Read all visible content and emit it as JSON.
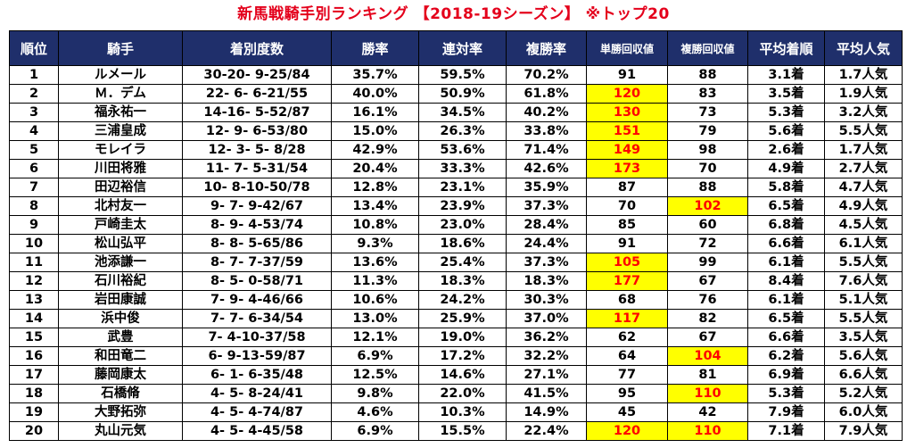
{
  "title": "新馬戦騎手別ランキング 【2018-19シーズン】 ※トップ20",
  "headers": [
    "順位",
    "騎手",
    "着別度数",
    "勝率",
    "連対率",
    "複勝率",
    "単勝回収値",
    "複勝回収値",
    "平均着順",
    "平均人気"
  ],
  "highlight": {
    "background": "#ffff00",
    "text": "#ff0000"
  },
  "header_color": "#1f2f6b",
  "rows": [
    {
      "rank": "1",
      "jockey": "ルメール",
      "record": "30-20- 9-25/84",
      "win": "35.7%",
      "quinella": "59.5%",
      "show": "70.2%",
      "win_return": "91",
      "show_return": "88",
      "avg_finish": "3.1着",
      "avg_pop": "1.7人気",
      "hl_win": false,
      "hl_show": false
    },
    {
      "rank": "2",
      "jockey": "Ｍ．デム",
      "record": "22- 6- 6-21/55",
      "win": "40.0%",
      "quinella": "50.9%",
      "show": "61.8%",
      "win_return": "120",
      "show_return": "83",
      "avg_finish": "3.5着",
      "avg_pop": "1.9人気",
      "hl_win": true,
      "hl_show": false
    },
    {
      "rank": "3",
      "jockey": "福永祐一",
      "record": "14-16- 5-52/87",
      "win": "16.1%",
      "quinella": "34.5%",
      "show": "40.2%",
      "win_return": "130",
      "show_return": "73",
      "avg_finish": "5.3着",
      "avg_pop": "3.2人気",
      "hl_win": true,
      "hl_show": false
    },
    {
      "rank": "4",
      "jockey": "三浦皇成",
      "record": "12- 9- 6-53/80",
      "win": "15.0%",
      "quinella": "26.3%",
      "show": "33.8%",
      "win_return": "151",
      "show_return": "79",
      "avg_finish": "5.6着",
      "avg_pop": "5.5人気",
      "hl_win": true,
      "hl_show": false
    },
    {
      "rank": "5",
      "jockey": "モレイラ",
      "record": "12- 3- 5- 8/28",
      "win": "42.9%",
      "quinella": "53.6%",
      "show": "71.4%",
      "win_return": "149",
      "show_return": "98",
      "avg_finish": "2.6着",
      "avg_pop": "1.7人気",
      "hl_win": true,
      "hl_show": false
    },
    {
      "rank": "6",
      "jockey": "川田将雅",
      "record": "11- 7- 5-31/54",
      "win": "20.4%",
      "quinella": "33.3%",
      "show": "42.6%",
      "win_return": "173",
      "show_return": "70",
      "avg_finish": "4.9着",
      "avg_pop": "2.7人気",
      "hl_win": true,
      "hl_show": false
    },
    {
      "rank": "7",
      "jockey": "田辺裕信",
      "record": "10- 8-10-50/78",
      "win": "12.8%",
      "quinella": "23.1%",
      "show": "35.9%",
      "win_return": "87",
      "show_return": "88",
      "avg_finish": "5.8着",
      "avg_pop": "4.7人気",
      "hl_win": false,
      "hl_show": false
    },
    {
      "rank": "8",
      "jockey": "北村友一",
      "record": "9- 7- 9-42/67",
      "win": "13.4%",
      "quinella": "23.9%",
      "show": "37.3%",
      "win_return": "70",
      "show_return": "102",
      "avg_finish": "6.5着",
      "avg_pop": "4.9人気",
      "hl_win": false,
      "hl_show": true
    },
    {
      "rank": "9",
      "jockey": "戸崎圭太",
      "record": "8- 9- 4-53/74",
      "win": "10.8%",
      "quinella": "23.0%",
      "show": "28.4%",
      "win_return": "85",
      "show_return": "60",
      "avg_finish": "6.8着",
      "avg_pop": "4.5人気",
      "hl_win": false,
      "hl_show": false
    },
    {
      "rank": "10",
      "jockey": "松山弘平",
      "record": "8- 8- 5-65/86",
      "win": "9.3%",
      "quinella": "18.6%",
      "show": "24.4%",
      "win_return": "91",
      "show_return": "72",
      "avg_finish": "6.6着",
      "avg_pop": "6.1人気",
      "hl_win": false,
      "hl_show": false
    },
    {
      "rank": "11",
      "jockey": "池添謙一",
      "record": "8- 7- 7-37/59",
      "win": "13.6%",
      "quinella": "25.4%",
      "show": "37.3%",
      "win_return": "105",
      "show_return": "99",
      "avg_finish": "6.1着",
      "avg_pop": "5.5人気",
      "hl_win": true,
      "hl_show": false
    },
    {
      "rank": "12",
      "jockey": "石川裕紀",
      "record": "8- 5- 0-58/71",
      "win": "11.3%",
      "quinella": "18.3%",
      "show": "18.3%",
      "win_return": "177",
      "show_return": "67",
      "avg_finish": "8.4着",
      "avg_pop": "7.6人気",
      "hl_win": true,
      "hl_show": false
    },
    {
      "rank": "13",
      "jockey": "岩田康誠",
      "record": "7- 9- 4-46/66",
      "win": "10.6%",
      "quinella": "24.2%",
      "show": "30.3%",
      "win_return": "68",
      "show_return": "76",
      "avg_finish": "6.1着",
      "avg_pop": "5.1人気",
      "hl_win": false,
      "hl_show": false
    },
    {
      "rank": "14",
      "jockey": "浜中俊",
      "record": "7- 7- 6-34/54",
      "win": "13.0%",
      "quinella": "25.9%",
      "show": "37.0%",
      "win_return": "117",
      "show_return": "82",
      "avg_finish": "6.5着",
      "avg_pop": "5.5人気",
      "hl_win": true,
      "hl_show": false
    },
    {
      "rank": "15",
      "jockey": "武豊",
      "record": "7- 4-10-37/58",
      "win": "12.1%",
      "quinella": "19.0%",
      "show": "36.2%",
      "win_return": "62",
      "show_return": "67",
      "avg_finish": "6.6着",
      "avg_pop": "3.5人気",
      "hl_win": false,
      "hl_show": false
    },
    {
      "rank": "16",
      "jockey": "和田竜二",
      "record": "6- 9-13-59/87",
      "win": "6.9%",
      "quinella": "17.2%",
      "show": "32.2%",
      "win_return": "64",
      "show_return": "104",
      "avg_finish": "6.2着",
      "avg_pop": "5.6人気",
      "hl_win": false,
      "hl_show": true
    },
    {
      "rank": "17",
      "jockey": "藤岡康太",
      "record": "6- 1- 6-35/48",
      "win": "12.5%",
      "quinella": "14.6%",
      "show": "27.1%",
      "win_return": "77",
      "show_return": "81",
      "avg_finish": "6.9着",
      "avg_pop": "6.6人気",
      "hl_win": false,
      "hl_show": false
    },
    {
      "rank": "18",
      "jockey": "石橋脩",
      "record": "4- 5- 8-24/41",
      "win": "9.8%",
      "quinella": "22.0%",
      "show": "41.5%",
      "win_return": "95",
      "show_return": "110",
      "avg_finish": "5.3着",
      "avg_pop": "5.2人気",
      "hl_win": false,
      "hl_show": true
    },
    {
      "rank": "19",
      "jockey": "大野拓弥",
      "record": "4- 5- 4-74/87",
      "win": "4.6%",
      "quinella": "10.3%",
      "show": "14.9%",
      "win_return": "45",
      "show_return": "42",
      "avg_finish": "7.9着",
      "avg_pop": "6.0人気",
      "hl_win": false,
      "hl_show": false
    },
    {
      "rank": "20",
      "jockey": "丸山元気",
      "record": "4- 5- 4-45/58",
      "win": "6.9%",
      "quinella": "15.5%",
      "show": "22.4%",
      "win_return": "120",
      "show_return": "110",
      "avg_finish": "7.1着",
      "avg_pop": "7.9人気",
      "hl_win": true,
      "hl_show": true
    }
  ]
}
